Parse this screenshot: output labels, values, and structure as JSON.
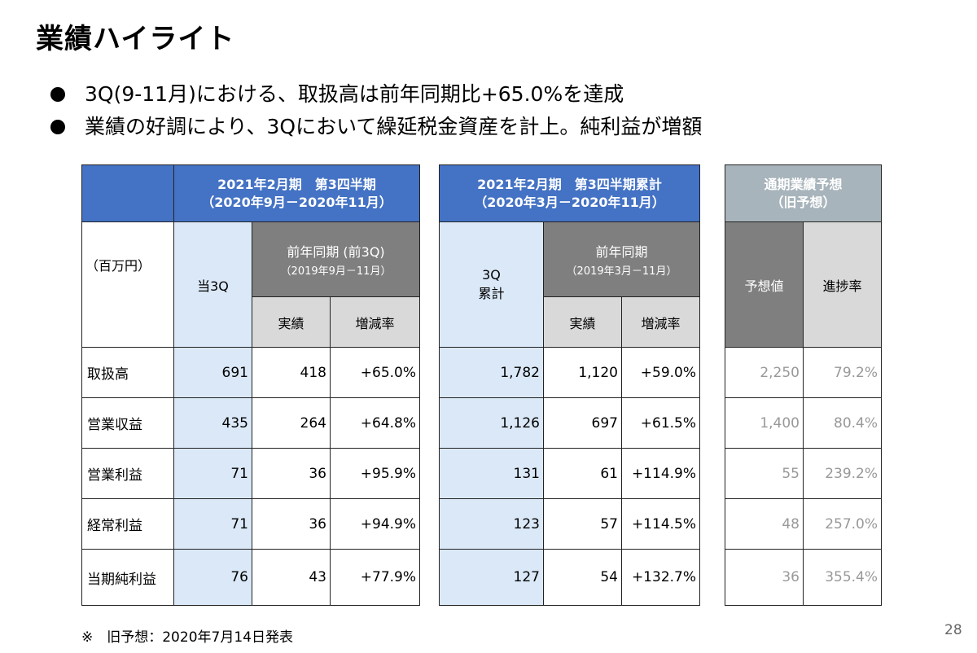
{
  "title": "業績ハイライト",
  "bullets": [
    "3Q(9-11月)における、取扱高は前年同期比+65.0%を達成",
    "業績の好調により、3Qにおいて繰延税金資産を計上。純利益が増額"
  ],
  "table1": {
    "header_line1": "2021年2月期　第3四半期",
    "header_line2": "（2020年9月－2020年11月）",
    "unit": "（百万円）",
    "col_current": "当3Q",
    "col_prev_title": "前年同期 (前3Q)",
    "col_prev_sub": "（2019年9月－11月）",
    "col_actual": "実績",
    "col_rate": "増減率"
  },
  "table2": {
    "header_line1": "2021年2月期　第3四半期累計",
    "header_line2": "（2020年3月－2020年11月）",
    "col_cum_line1": "3Q",
    "col_cum_line2": "累計",
    "col_prev_title": "前年同期",
    "col_prev_sub": "（2019年3月－11月）",
    "col_actual": "実績",
    "col_rate": "増減率"
  },
  "table3": {
    "header_line1": "通期業績予想",
    "header_line2": "（旧予想）",
    "col_forecast": "予想値",
    "col_progress": "進捗率"
  },
  "rows": [
    {
      "label": "取扱高",
      "q3": "691",
      "prev_q3": "418",
      "q3_rate": "+65.0%",
      "cum": "1,782",
      "prev_cum": "1,120",
      "cum_rate": "+59.0%",
      "forecast": "2,250",
      "progress": "79.2%"
    },
    {
      "label": "営業収益",
      "q3": "435",
      "prev_q3": "264",
      "q3_rate": "+64.8%",
      "cum": "1,126",
      "prev_cum": "697",
      "cum_rate": "+61.5%",
      "forecast": "1,400",
      "progress": "80.4%"
    },
    {
      "label": "営業利益",
      "q3": "71",
      "prev_q3": "36",
      "q3_rate": "+95.9%",
      "cum": "131",
      "prev_cum": "61",
      "cum_rate": "+114.9%",
      "forecast": "55",
      "progress": "239.2%"
    },
    {
      "label": "経常利益",
      "q3": "71",
      "prev_q3": "36",
      "q3_rate": "+94.9%",
      "cum": "123",
      "prev_cum": "57",
      "cum_rate": "+114.5%",
      "forecast": "48",
      "progress": "257.0%"
    },
    {
      "label": "当期純利益",
      "q3": "76",
      "prev_q3": "43",
      "q3_rate": "+77.9%",
      "cum": "127",
      "prev_cum": "54",
      "cum_rate": "+132.7%",
      "forecast": "36",
      "progress": "355.4%"
    }
  ],
  "footnote": "※　旧予想：2020年7月14日発表",
  "page_number": "28",
  "colors": {
    "header_blue": "#4472c4",
    "header_grey": "#a8b4bb",
    "light_blue": "#dae8f7",
    "dark_grey": "#7f7f7f",
    "light_grey": "#d9d9d9"
  }
}
